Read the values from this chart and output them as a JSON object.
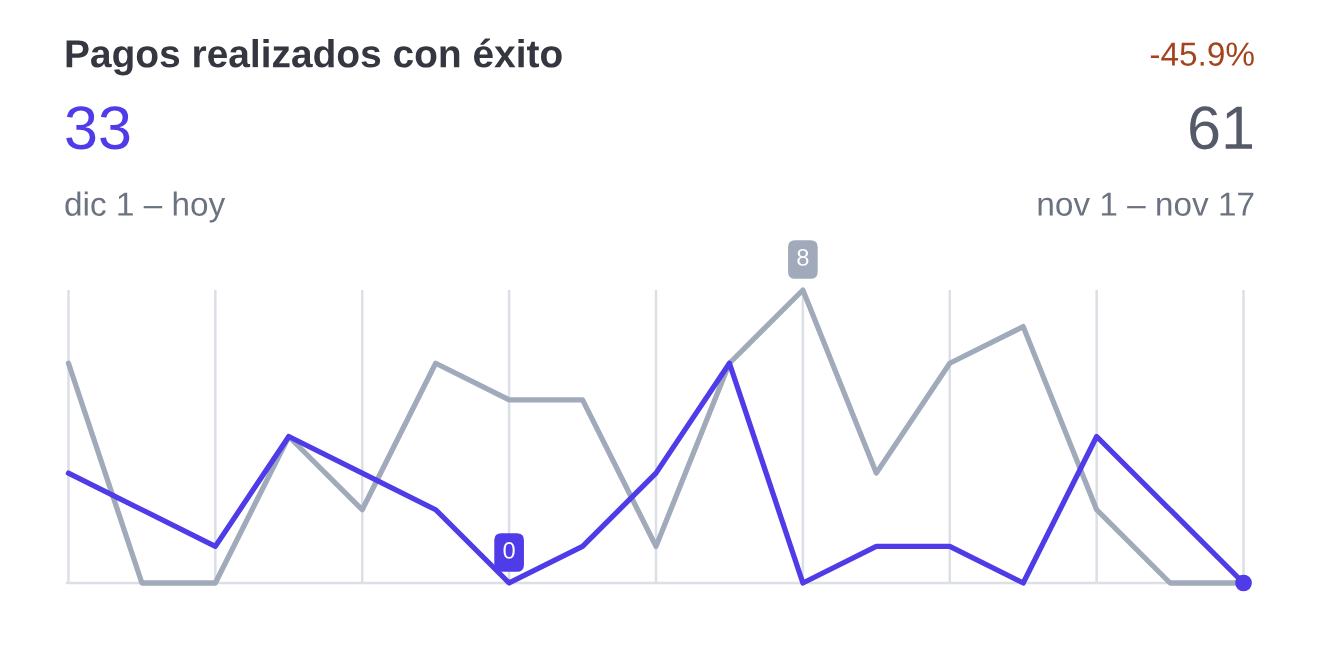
{
  "chart_data": {
    "type": "line",
    "title": "Pagos realizados con éxito",
    "categories": [
      null,
      null,
      null,
      null,
      null,
      null,
      null,
      null,
      null,
      null,
      null,
      null,
      null,
      null,
      null,
      null,
      null
    ],
    "series": [
      {
        "color": "#a0aaba",
        "values": [
          6,
          0,
          0,
          4,
          2,
          6,
          5,
          5,
          1,
          6,
          8,
          3,
          6,
          7,
          2,
          0,
          0
        ],
        "value_labels": [
          null,
          null,
          null,
          null,
          null,
          null,
          null,
          null,
          null,
          null,
          "8",
          null,
          null,
          null,
          null,
          null,
          null
        ]
      },
      {
        "color": "#4f3ce8",
        "values": [
          3,
          2,
          1,
          4,
          3,
          2,
          0,
          1,
          3,
          6,
          0,
          1,
          1,
          0,
          4,
          2,
          0
        ],
        "value_labels": [
          null,
          null,
          null,
          null,
          null,
          null,
          "0",
          null,
          null,
          null,
          null,
          null,
          null,
          null,
          null,
          null,
          null
        ]
      }
    ],
    "annotations": [
      "-45.9%",
      "33",
      "61",
      "dic 1 – hoy",
      "nov 1 – nov 17"
    ],
    "ylim": [
      0,
      8
    ],
    "grid": "x",
    "marker": "none",
    "line_style": "solid",
    "legend": false
  }
}
